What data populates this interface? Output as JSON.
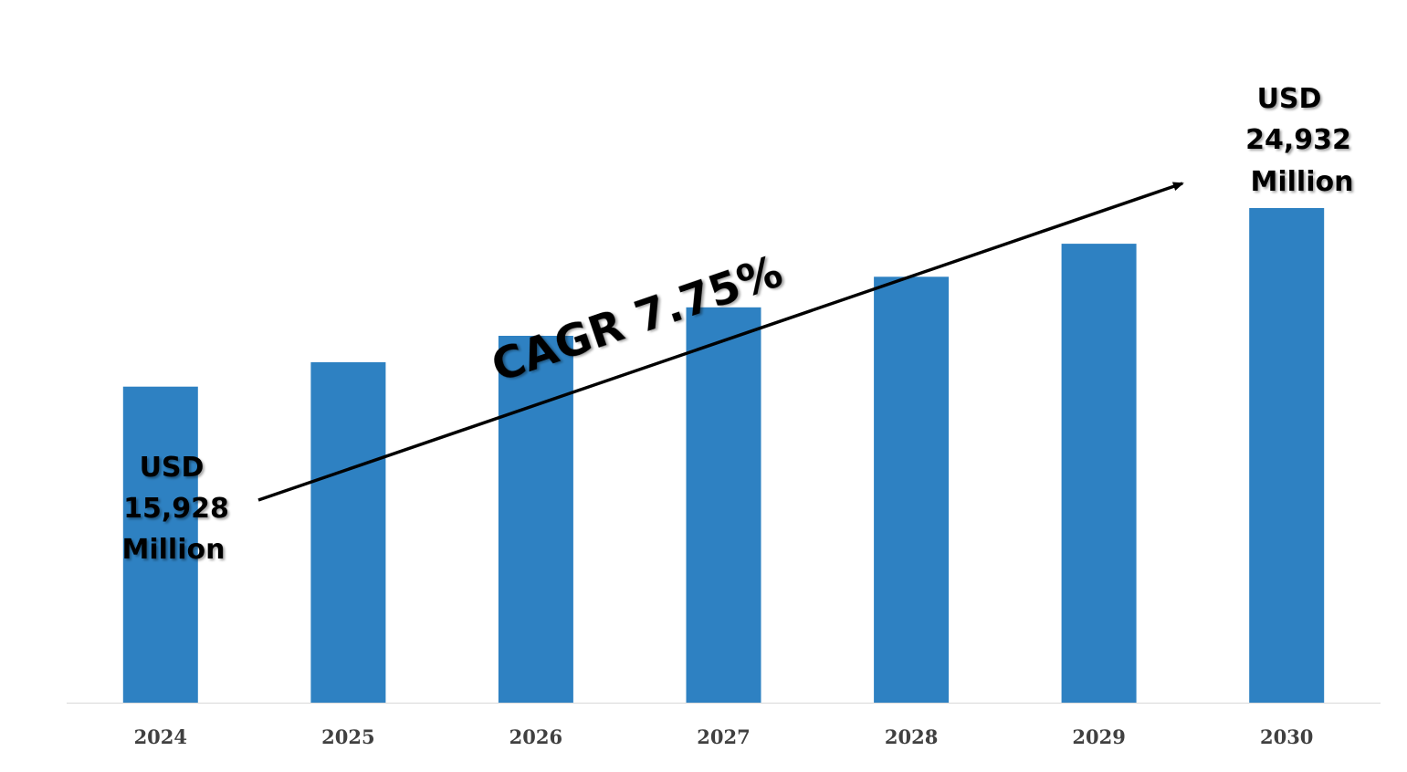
{
  "chart_data": {
    "type": "bar",
    "categories": [
      "2024",
      "2025",
      "2026",
      "2027",
      "2028",
      "2029",
      "2030"
    ],
    "values": [
      15928,
      17162,
      18492,
      19925,
      21469,
      23133,
      24932
    ],
    "value_unit": "USD Million",
    "ylim": [
      0,
      24932
    ],
    "grid": false,
    "legend": "none",
    "bar_color": "#2E81C2",
    "axis_color": "#D9D9D9",
    "tick_label_color": "#404040",
    "annotations": {
      "cagr": "CAGR 7.75%",
      "start_label": [
        "USD",
        "15,928",
        "Million"
      ],
      "end_label": [
        "USD",
        "24,932",
        "Million"
      ]
    }
  }
}
